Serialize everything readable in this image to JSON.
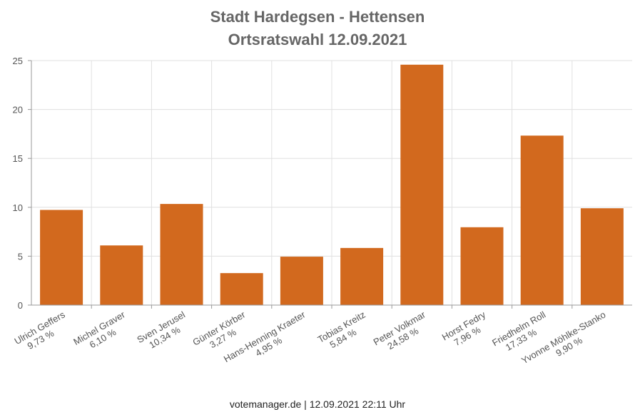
{
  "chart_data": {
    "type": "bar",
    "title": [
      "Stadt Hardegsen - Hettensen",
      "Ortsratswahl 12.09.2021"
    ],
    "categories": [
      "Ulrich Geffers",
      "Michel Graver",
      "Sven Jerusel",
      "Günter Körber",
      "Hans-Henning Kraeter",
      "Tobias Kreitz",
      "Peter Volkmar",
      "Horst Fedry",
      "Friedhelm Roll",
      "Yvonne Möhlke-Stanko"
    ],
    "value_labels": [
      "9,73 %",
      "6,10 %",
      "10,34 %",
      "3,27 %",
      "4,95 %",
      "5,84 %",
      "24,58 %",
      "7,96 %",
      "17,33 %",
      "9,90 %"
    ],
    "values": [
      9.73,
      6.1,
      10.34,
      3.27,
      4.95,
      5.84,
      24.58,
      7.96,
      17.33,
      9.9
    ],
    "ylim": [
      0,
      25
    ],
    "yticks": [
      0,
      5,
      10,
      15,
      20,
      25
    ],
    "grid": true,
    "bar_color": "#d2691e",
    "grid_color": "#e0e0e0"
  },
  "footer": "votemanager.de | 12.09.2021 22:11 Uhr"
}
